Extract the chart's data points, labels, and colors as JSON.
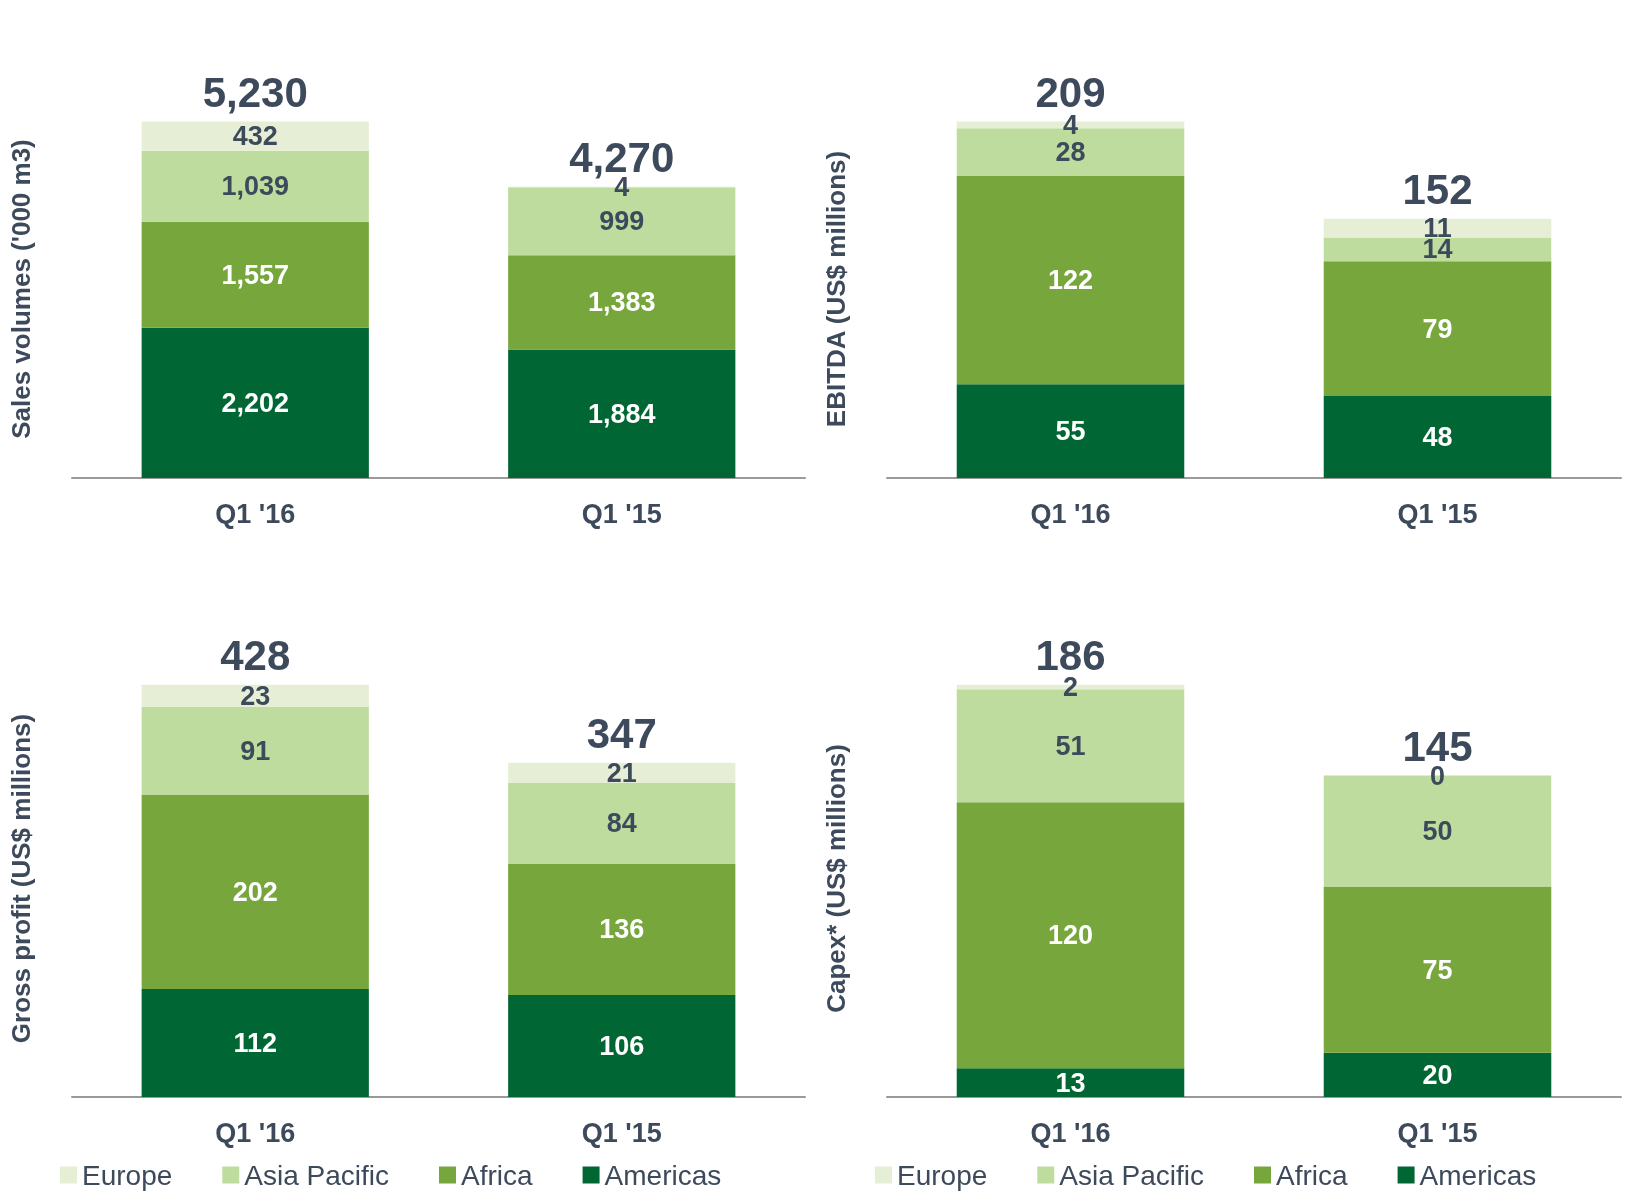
{
  "chart_data": [
    {
      "type": "bar",
      "ylabel": "Sales volumes ('000 m3)",
      "categories": [
        "Q1 '16",
        "Q1 '15"
      ],
      "stacked": true,
      "legend": false,
      "grid": false,
      "tick_labels": "x",
      "totals": [
        "5,230",
        "4,270"
      ],
      "series": [
        {
          "color": "#006633",
          "values": [
            2202,
            1884
          ],
          "value_labels": [
            "2,202",
            "1,884"
          ]
        },
        {
          "color": "#76a63c",
          "values": [
            1557,
            1383
          ],
          "value_labels": [
            "1,557",
            "1,383"
          ]
        },
        {
          "color": "#bfdc9f",
          "values": [
            1039,
            999
          ],
          "value_labels": [
            "1,039",
            "999"
          ]
        },
        {
          "color": "#e6efd5",
          "values": [
            432,
            4
          ],
          "value_labels": [
            "432",
            "4"
          ]
        }
      ]
    },
    {
      "type": "bar",
      "ylabel": "EBITDA (US$ millions)",
      "categories": [
        "Q1 '16",
        "Q1 '15"
      ],
      "stacked": true,
      "data_labels": true,
      "legend": false,
      "grid": false,
      "tick_labels": "x",
      "totals": [
        "209",
        "152"
      ],
      "series": [
        {
          "color": "#006633",
          "values": [
            55,
            48
          ]
        },
        {
          "color": "#76a63c",
          "values": [
            122,
            79
          ]
        },
        {
          "color": "#bfdc9f",
          "values": [
            28,
            14
          ]
        },
        {
          "color": "#e6efd5",
          "values": [
            4,
            11
          ]
        }
      ]
    },
    {
      "type": "bar",
      "ylabel": "Gross profit (US$ millions)",
      "categories": [
        "Q1 '16",
        "Q1 '15"
      ],
      "stacked": true,
      "data_labels": true,
      "legend": "bottom",
      "grid": false,
      "tick_labels": "x",
      "totals": [
        "428",
        "347"
      ],
      "series": [
        {
          "name": "Americas",
          "color": "#006633",
          "values": [
            112,
            106
          ]
        },
        {
          "name": "Africa",
          "color": "#76a63c",
          "values": [
            202,
            136
          ]
        },
        {
          "name": "Asia Pacific",
          "color": "#bfdc9f",
          "values": [
            91,
            84
          ]
        },
        {
          "name": "Europe",
          "color": "#e6efd5",
          "values": [
            23,
            21
          ]
        }
      ]
    },
    {
      "type": "bar",
      "ylabel": "Capex* (US$ millions)",
      "categories": [
        "Q1 '16",
        "Q1 '15"
      ],
      "stacked": true,
      "data_labels": true,
      "legend": "bottom",
      "grid": false,
      "tick_labels": "x",
      "totals": [
        "186",
        "145"
      ],
      "series": [
        {
          "name": "Americas",
          "color": "#006633",
          "values": [
            13,
            20
          ]
        },
        {
          "name": "Africa",
          "color": "#76a63c",
          "values": [
            120,
            75
          ]
        },
        {
          "name": "Asia Pacific",
          "color": "#bfdc9f",
          "values": [
            51,
            50
          ]
        },
        {
          "name": "Europe",
          "color": "#e6efd5",
          "values": [
            2,
            0
          ]
        }
      ]
    }
  ]
}
